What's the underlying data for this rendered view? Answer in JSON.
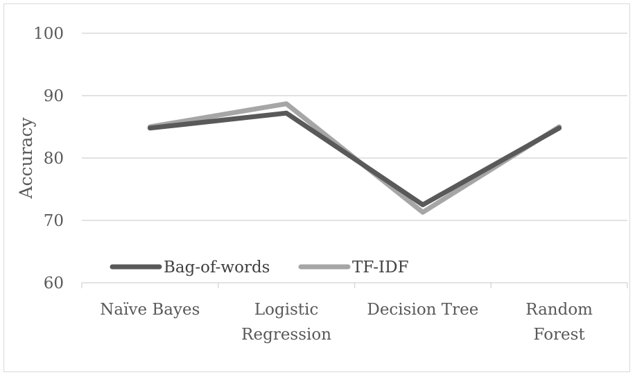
{
  "chart_data": {
    "type": "line",
    "title": "",
    "xlabel": "",
    "ylabel": "Accuracy",
    "ylim": [
      60,
      100
    ],
    "yticks": [
      60,
      70,
      80,
      90,
      100
    ],
    "grid": true,
    "legend_position": "bottom-left",
    "categories": [
      [
        "Naïve Bayes"
      ],
      [
        "Logistic",
        "Regression"
      ],
      [
        "Decision Tree"
      ],
      [
        "Random",
        "Forest"
      ]
    ],
    "series": [
      {
        "name": "Bag-of-words",
        "color": "#595959",
        "values": [
          84.8,
          87.2,
          72.5,
          84.8
        ]
      },
      {
        "name": "TF-IDF",
        "color": "#a6a6a6",
        "values": [
          85.0,
          88.7,
          71.3,
          85.0
        ]
      }
    ]
  }
}
